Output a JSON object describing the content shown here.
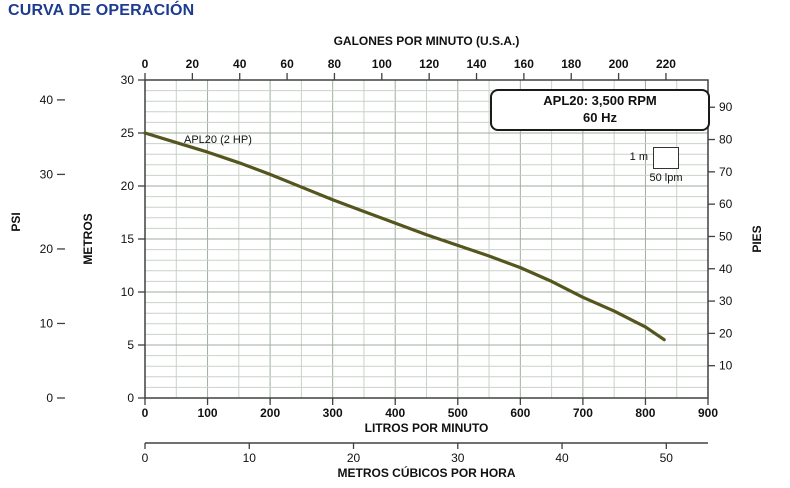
{
  "chart_data": {
    "type": "line",
    "title": "CURVA DE OPERACIÓN",
    "curve_label": "APL20 (2 HP)",
    "legend_box": {
      "line1": "APL20: 3,500 RPM",
      "line2": "60 Hz"
    },
    "scale_indicator": {
      "height_label": "1 m",
      "width_label": "50 lpm"
    },
    "axes": {
      "top": {
        "label": "GALONES POR MINUTO (U.S.A.)",
        "ticks": [
          0,
          20,
          40,
          60,
          80,
          100,
          120,
          140,
          160,
          180,
          200,
          220
        ],
        "lpm_per_unit": 3.7854
      },
      "bottom": {
        "label": "LITROS POR MINUTO",
        "ticks": [
          0,
          100,
          200,
          300,
          400,
          500,
          600,
          700,
          800,
          900
        ],
        "range": [
          0,
          900
        ]
      },
      "bottom2": {
        "label": "METROS CÚBICOS POR HORA",
        "ticks": [
          0,
          10,
          20,
          30,
          40,
          50
        ],
        "lpm_per_unit": 16.667
      },
      "left_outer": {
        "label": "PSI",
        "ticks": [
          0,
          10,
          20,
          30,
          40
        ],
        "m_per_unit": 0.7031
      },
      "left_inner": {
        "label": "METROS",
        "ticks": [
          0,
          5,
          10,
          15,
          20,
          25,
          30
        ],
        "range": [
          0,
          30
        ]
      },
      "right": {
        "label": "PIES",
        "ticks": [
          10,
          20,
          30,
          40,
          50,
          60,
          70,
          80,
          90
        ],
        "m_per_unit": 0.3048
      }
    },
    "grid": {
      "minor_x_lpm": 50,
      "minor_y_m": 1,
      "major_x_lpm": 100,
      "major_y_m": 5
    },
    "series": [
      {
        "name": "APL20 (2 HP)",
        "x_unit": "lpm",
        "y_unit": "m",
        "points": [
          [
            0,
            25
          ],
          [
            50,
            24.1
          ],
          [
            100,
            23.2
          ],
          [
            150,
            22.2
          ],
          [
            200,
            21.1
          ],
          [
            250,
            19.9
          ],
          [
            300,
            18.7
          ],
          [
            350,
            17.6
          ],
          [
            400,
            16.5
          ],
          [
            450,
            15.4
          ],
          [
            500,
            14.4
          ],
          [
            550,
            13.4
          ],
          [
            600,
            12.3
          ],
          [
            650,
            11.0
          ],
          [
            700,
            9.5
          ],
          [
            750,
            8.2
          ],
          [
            800,
            6.7
          ],
          [
            830,
            5.5
          ]
        ]
      }
    ],
    "colors": {
      "title": "#1d3c8f",
      "curve": "#55551e",
      "grid_minor": "#c9d2c9",
      "grid_major": "#9fae9f",
      "axis": "#404040"
    }
  }
}
